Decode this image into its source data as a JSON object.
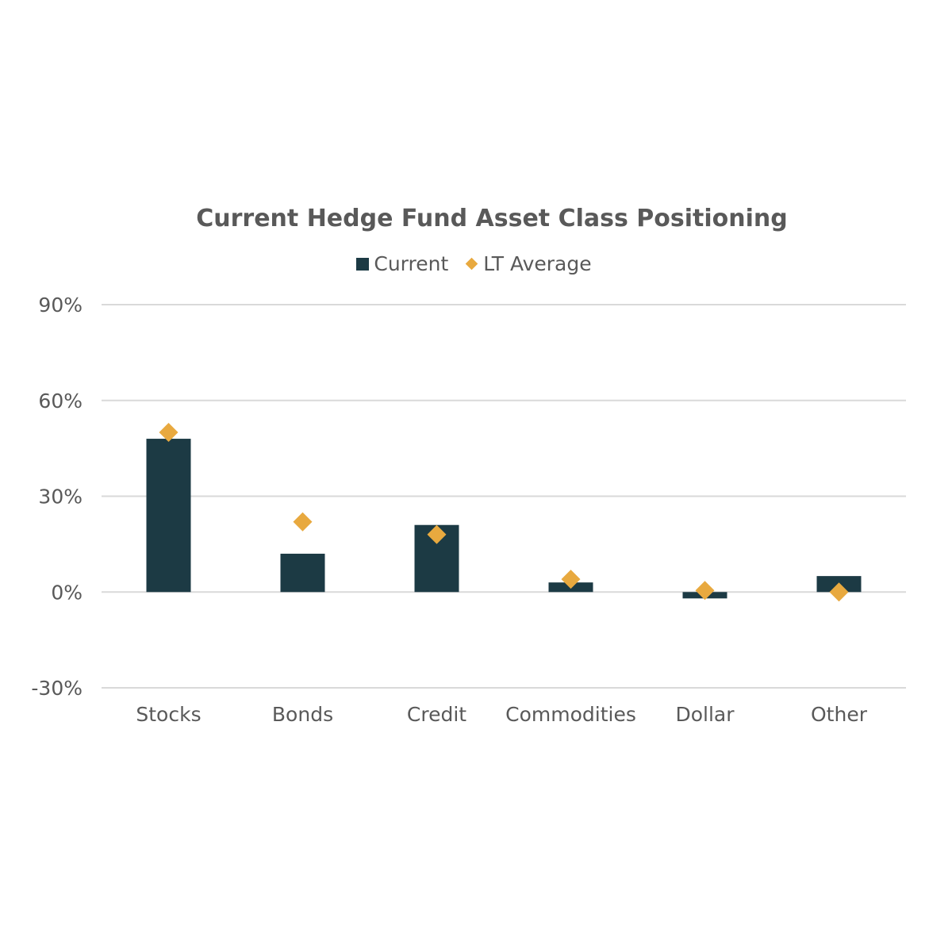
{
  "chart_data": {
    "type": "bar",
    "title": "Current Hedge Fund Asset Class Positioning",
    "categories": [
      "Stocks",
      "Bonds",
      "Credit",
      "Commodities",
      "Dollar",
      "Other"
    ],
    "series": [
      {
        "name": "Current",
        "kind": "bar",
        "color": "#1c3a44",
        "values": [
          48,
          12,
          21,
          3,
          -2,
          5
        ]
      },
      {
        "name": "LT Average",
        "kind": "diamond",
        "color": "#e8a93f",
        "values": [
          50,
          22,
          18,
          4,
          0.5,
          0
        ]
      }
    ],
    "ylim": [
      -30,
      90
    ],
    "yticks": [
      {
        "value": 90,
        "label": "90%"
      },
      {
        "value": 60,
        "label": "60%"
      },
      {
        "value": 30,
        "label": "30%"
      },
      {
        "value": 0,
        "label": "0%"
      },
      {
        "value": -30,
        "label": "-30%"
      }
    ],
    "grid": true,
    "legend_position": "top-center"
  }
}
